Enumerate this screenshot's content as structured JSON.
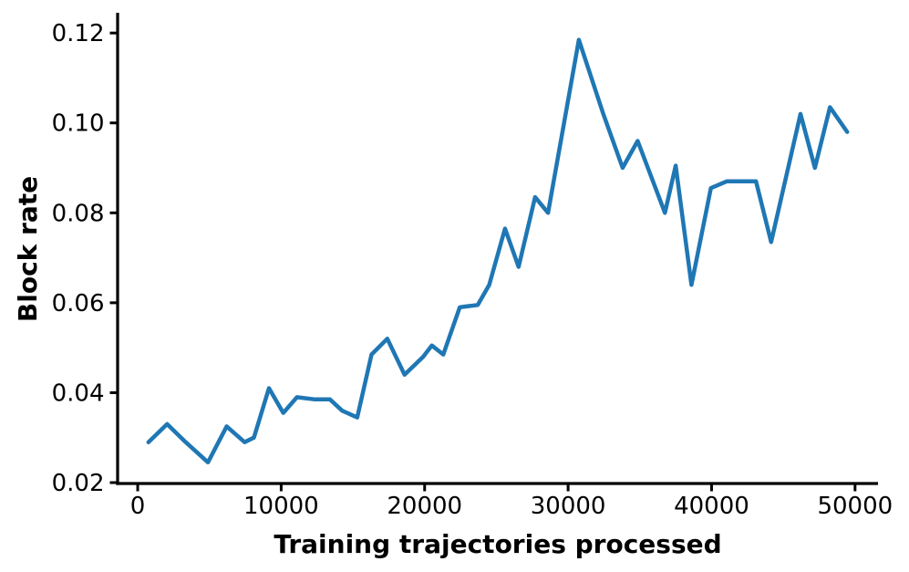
{
  "figure": {
    "background": "#ffffff",
    "axis_color": "#000000"
  },
  "chart_data": {
    "type": "line",
    "title": "",
    "xlabel": "Training trajectories processed",
    "ylabel": "Block rate",
    "grid": false,
    "legend": null,
    "xlim": [
      -1400,
      51600
    ],
    "ylim": [
      0.0198,
      0.1245
    ],
    "xticks": {
      "values": [
        0,
        10000,
        20000,
        30000,
        40000,
        50000
      ],
      "labels": [
        "0",
        "10000",
        "20000",
        "30000",
        "40000",
        "50000"
      ]
    },
    "yticks": {
      "values": [
        0.02,
        0.04,
        0.06,
        0.08,
        0.1,
        0.12
      ],
      "labels": [
        "0.02",
        "0.04",
        "0.06",
        "0.08",
        "0.10",
        "0.12"
      ]
    },
    "x": [
      750,
      2050,
      3350,
      4900,
      6200,
      7450,
      8100,
      9150,
      10150,
      11100,
      12350,
      13400,
      14250,
      15300,
      16300,
      17400,
      18600,
      19900,
      20500,
      21300,
      22450,
      23700,
      24500,
      25600,
      26550,
      27700,
      28600,
      30750,
      32450,
      33800,
      34850,
      36750,
      37500,
      38600,
      39950,
      41050,
      43100,
      44150,
      46200,
      47200,
      48250,
      49450
    ],
    "series": [
      {
        "name": "Block rate",
        "color": "#1f77b4",
        "line_width": 4.5,
        "values": [
          0.029,
          0.033,
          0.029,
          0.0245,
          0.0325,
          0.029,
          0.03,
          0.041,
          0.0355,
          0.039,
          0.0385,
          0.0385,
          0.036,
          0.0345,
          0.0485,
          0.052,
          0.044,
          0.048,
          0.0505,
          0.0485,
          0.059,
          0.0595,
          0.064,
          0.0765,
          0.068,
          0.0835,
          0.08,
          0.1185,
          0.102,
          0.09,
          0.096,
          0.08,
          0.0905,
          0.064,
          0.0855,
          0.087,
          0.087,
          0.0735,
          0.102,
          0.09,
          0.1035,
          0.098
        ]
      }
    ]
  }
}
